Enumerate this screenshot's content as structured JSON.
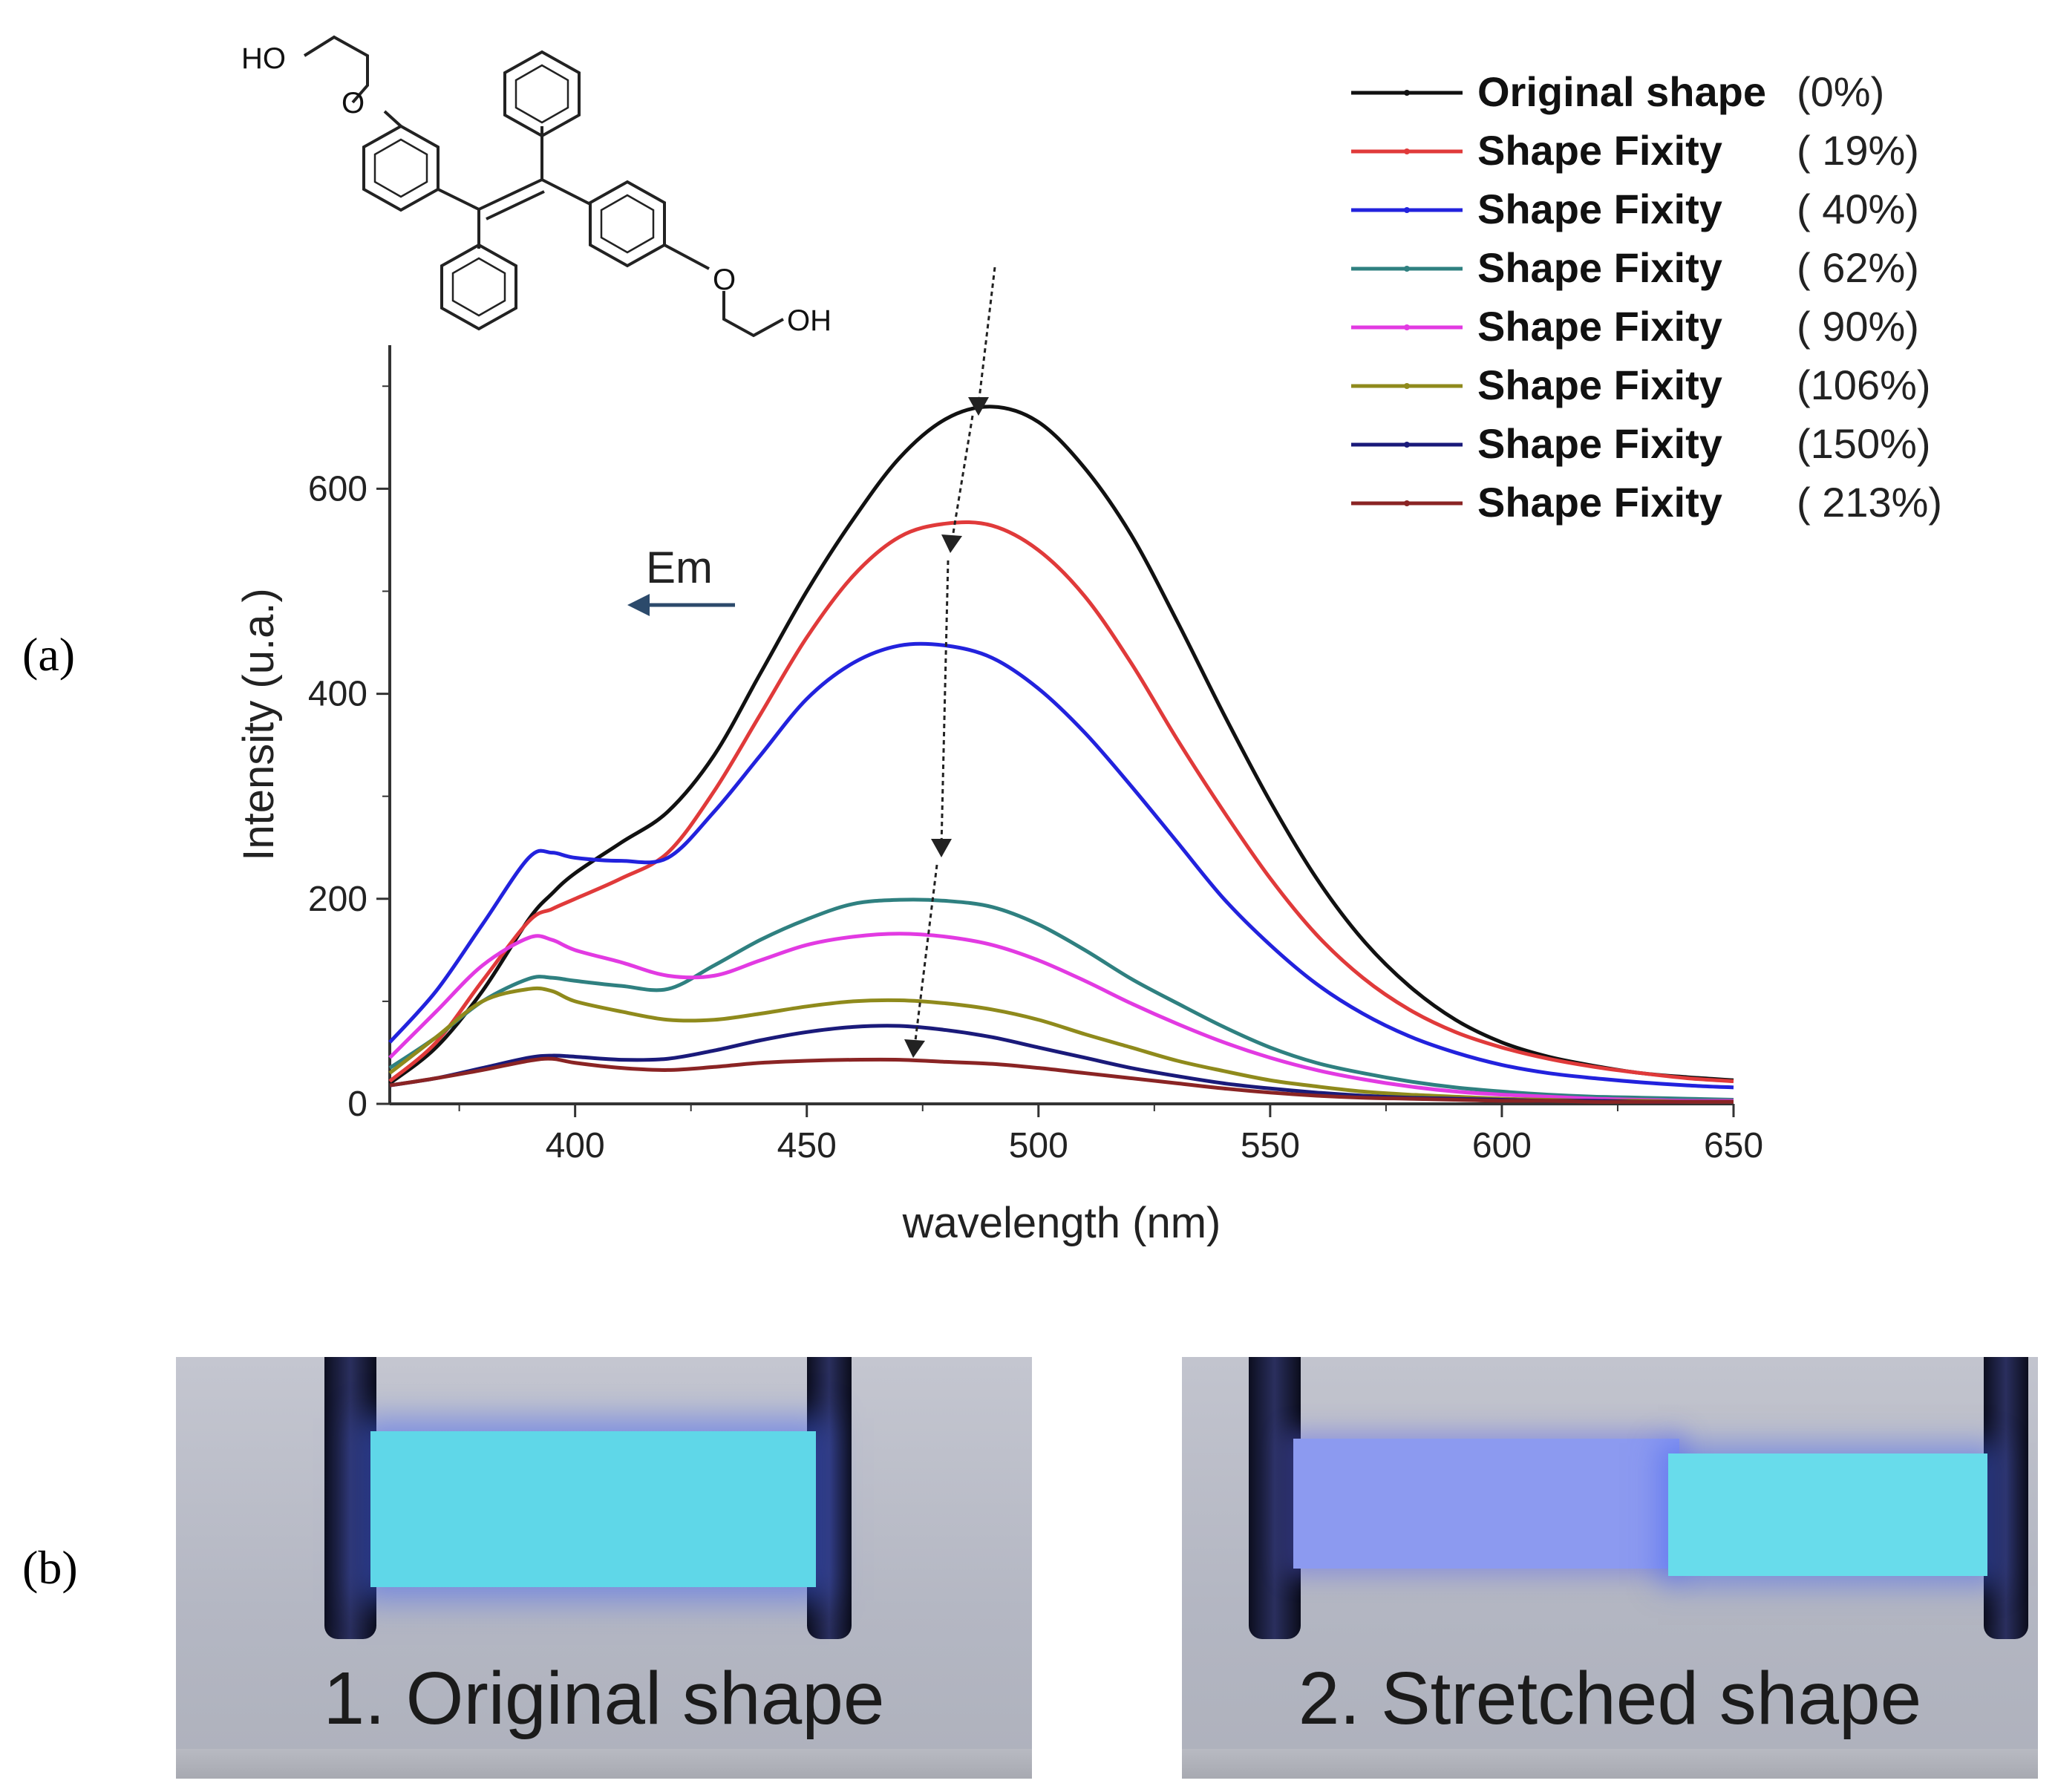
{
  "panels": {
    "a_label": "(a)",
    "b_label": "(b)"
  },
  "molecule": {
    "ho_label": "HO",
    "oh_label": "OH",
    "o_label": "O"
  },
  "annotation": {
    "em_label": "Em"
  },
  "chart_data": {
    "type": "line",
    "xlabel": "wavelength (nm)",
    "ylabel": "Intensity (u.a.)",
    "xlim": [
      360,
      650
    ],
    "ylim": [
      0,
      600
    ],
    "x_ticks": [
      400,
      450,
      500,
      550,
      600,
      650
    ],
    "y_ticks": [
      0,
      200,
      400,
      600
    ],
    "grid": false,
    "legend_position": "top-right",
    "x": [
      360,
      370,
      380,
      390,
      395,
      400,
      410,
      420,
      430,
      440,
      450,
      460,
      470,
      480,
      490,
      500,
      510,
      520,
      530,
      540,
      550,
      560,
      570,
      580,
      590,
      600,
      610,
      620,
      630,
      640,
      650
    ],
    "series": [
      {
        "name": "Original shape",
        "label": "(0%)",
        "color": "#111111",
        "values": [
          20,
          55,
          110,
          180,
          205,
          225,
          255,
          285,
          340,
          420,
          500,
          570,
          630,
          668,
          680,
          665,
          620,
          555,
          470,
          380,
          295,
          220,
          160,
          115,
          82,
          60,
          46,
          37,
          30,
          26,
          23
        ]
      },
      {
        "name": "Shape Fixity",
        "label": "( 19%)",
        "color": "#e03a3a",
        "values": [
          22,
          60,
          120,
          178,
          190,
          200,
          220,
          245,
          305,
          380,
          455,
          515,
          553,
          566,
          564,
          540,
          495,
          430,
          355,
          285,
          220,
          165,
          123,
          92,
          70,
          55,
          44,
          36,
          30,
          25,
          22
        ]
      },
      {
        "name": "Shape Fixity",
        "label": "( 40%)",
        "color": "#2222dd",
        "values": [
          60,
          110,
          175,
          240,
          245,
          240,
          237,
          240,
          285,
          340,
          395,
          430,
          447,
          447,
          435,
          405,
          362,
          310,
          255,
          200,
          155,
          117,
          88,
          66,
          50,
          38,
          30,
          25,
          21,
          18,
          16
        ]
      },
      {
        "name": "Shape Fixity",
        "label": "( 62%)",
        "color": "#2f8080",
        "values": [
          35,
          65,
          100,
          122,
          123,
          120,
          115,
          112,
          135,
          160,
          180,
          195,
          199,
          198,
          192,
          175,
          150,
          122,
          98,
          75,
          55,
          40,
          30,
          22,
          16,
          12,
          9,
          7,
          6,
          5,
          4
        ]
      },
      {
        "name": "Shape Fixity",
        "label": "( 90%)",
        "color": "#e23ae2",
        "values": [
          45,
          90,
          135,
          162,
          160,
          150,
          138,
          125,
          125,
          140,
          155,
          163,
          166,
          163,
          155,
          140,
          120,
          98,
          78,
          60,
          45,
          33,
          24,
          17,
          12,
          9,
          7,
          5,
          4,
          3,
          3
        ]
      },
      {
        "name": "Shape Fixity",
        "label": "(106%)",
        "color": "#8f8a1c",
        "values": [
          30,
          65,
          100,
          112,
          110,
          100,
          90,
          82,
          82,
          88,
          95,
          100,
          101,
          98,
          92,
          82,
          68,
          55,
          42,
          32,
          23,
          17,
          12,
          9,
          7,
          5,
          4,
          3,
          3,
          2,
          2
        ]
      },
      {
        "name": "Shape Fixity",
        "label": "(150%)",
        "color": "#1a1a7a",
        "values": [
          18,
          25,
          35,
          45,
          47,
          46,
          43,
          44,
          52,
          62,
          70,
          75,
          76,
          72,
          65,
          55,
          45,
          35,
          27,
          20,
          15,
          11,
          8,
          6,
          5,
          4,
          3,
          3,
          2,
          2,
          2
        ]
      },
      {
        "name": "Shape Fixity",
        "label": "( 213%)",
        "color": "#8a2424",
        "values": [
          18,
          25,
          33,
          42,
          44,
          40,
          35,
          33,
          36,
          40,
          42,
          43,
          43,
          41,
          39,
          35,
          30,
          25,
          20,
          15,
          11,
          8,
          6,
          5,
          4,
          3,
          3,
          2,
          2,
          2,
          2
        ]
      }
    ]
  },
  "photos": {
    "left_caption": "1. Original shape",
    "right_caption": "2. Stretched shape"
  }
}
